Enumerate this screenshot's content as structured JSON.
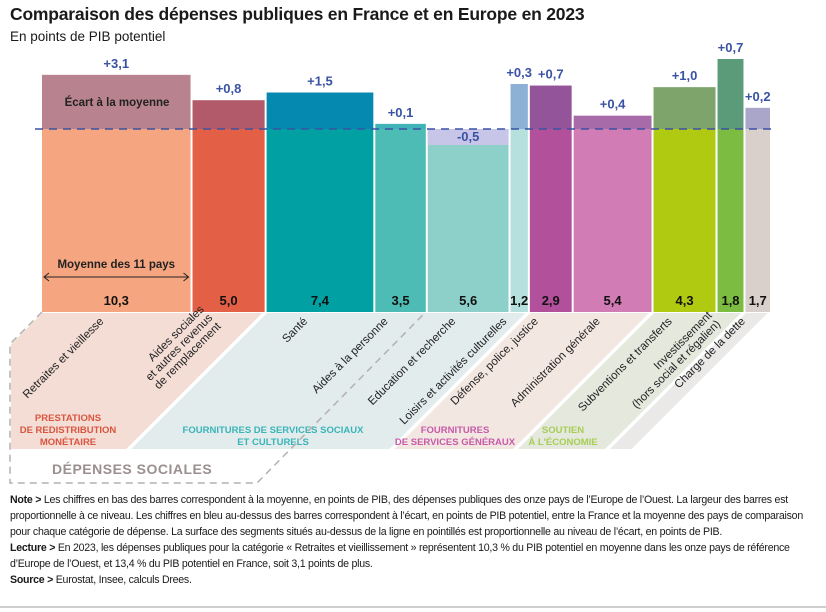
{
  "title": "Comparaison des dépenses publiques en France et en Europe en 2023",
  "subtitle": "En points de PIB potentiel",
  "annotations": {
    "ecart_label": "Écart à la moyenne",
    "moyenne_label": "Moyenne des 11 pays",
    "depenses_sociales": "DÉPENSES SOCIALES"
  },
  "chart_data": {
    "type": "bar",
    "variant": "variable-width bars (width = average level, area above dashed line = gap)",
    "categories": [
      [
        "Retraites et vieillesse"
      ],
      [
        "Aides sociales",
        "et autres revenus",
        "de remplacement"
      ],
      [
        "Santé"
      ],
      [
        "Aides à la personne"
      ],
      [
        "Education et recherche"
      ],
      [
        "Loisirs et activités culturelles"
      ],
      [
        "Défense, police, justice"
      ],
      [
        "Administration générale"
      ],
      [
        "Subventions et transferts"
      ],
      [
        "Investissement",
        "(hors social et régalien)"
      ],
      [
        "Charge de la dette"
      ]
    ],
    "moyenne": [
      10.3,
      5.0,
      7.4,
      3.5,
      5.6,
      1.2,
      2.9,
      5.4,
      4.3,
      1.8,
      1.7
    ],
    "moyenne_labels": [
      "10,3",
      "5,0",
      "7,4",
      "3,5",
      "5,6",
      "1,2",
      "2,9",
      "5,4",
      "4,3",
      "1,8",
      "1,7"
    ],
    "ecart": [
      3.1,
      0.8,
      1.5,
      0.1,
      -0.5,
      0.3,
      0.7,
      0.4,
      1.0,
      0.7,
      0.2
    ],
    "ecart_labels": [
      "+3,1",
      "+0,8",
      "+1,5",
      "+0,1",
      "-0,5",
      "+0,3",
      "+0,7",
      "+0,4",
      "+1,0",
      "+0,7",
      "+0,2"
    ],
    "base_colors": [
      "#f5a680",
      "#e35f45",
      "#00a0a3",
      "#4dbcb4",
      "#8dd0c9",
      "#b5e0dd",
      "#b3509c",
      "#d27cb5",
      "#b0ca12",
      "#7cbd41",
      "#d9d0cc"
    ],
    "ecart_colors": [
      "#b8838f",
      "#b25a6a",
      "#0689b1",
      "#3fb3b8",
      "#c7c6e8",
      "#8db1d4",
      "#94549a",
      "#a86baa",
      "#7fa46b",
      "#5c9b79",
      "#a9a6c9"
    ],
    "groups": [
      {
        "lines": [
          "PRESTATIONS",
          "DE REDISTRIBUTION",
          "MONÉTAIRE"
        ],
        "from": 0,
        "to": 1,
        "fill": "#f3ddd5",
        "text_color": "#d9553f"
      },
      {
        "lines": [
          "FOURNITURES DE SERVICES SOCIAUX",
          "ET CULTURELS"
        ],
        "from": 2,
        "to": 5,
        "fill": "#e2ecec",
        "text_color": "#3ab4b9"
      },
      {
        "lines": [
          "FOURNITURES",
          "DE SERVICES GÉNÉRAUX"
        ],
        "from": 6,
        "to": 7,
        "fill": "#f3e7e1",
        "text_color": "#c75aa9"
      },
      {
        "lines": [
          "SOUTIEN",
          "À L'ÉCONOMIE"
        ],
        "from": 8,
        "to": 9,
        "fill": "#e4e8dd",
        "text_color": "#a8cd55"
      },
      {
        "lines": [],
        "from": 10,
        "to": 10,
        "fill": "#ebe8e8",
        "text_color": "#999999"
      }
    ],
    "ecart_text_color": "#3a52a4",
    "reference_line": "dashed, France = moyenne"
  },
  "notes": {
    "note_label": "Note >",
    "note": " Les chiffres en bas des barres correspondent à la moyenne, en points de PIB, des dépenses publiques des onze pays de l’Europe de l’Ouest. La largeur des barres est proportionnelle à ce niveau. Les chiffres en bleu au-dessus des barres correspondent à l’écart, en points de PIB potentiel, entre la France et la moyenne des pays de comparaison pour chaque catégorie de dépense. La surface des segments situés au-dessus de la ligne en pointillés est proportionnelle au niveau de l’écart, en points de PIB.",
    "lecture_label": "Lecture >",
    "lecture": " En 2023, les dépenses publiques pour la catégorie « Retraites et vieillissement » représentent 10,3 % du PIB potentiel en moyenne dans les onze pays de référence d’Europe de l’Ouest, et 13,4 % du PIB potentiel en France, soit 3,1 points de plus.",
    "source_label": "Source >",
    "source": " Eurostat,  Insee, calculs Drees."
  }
}
